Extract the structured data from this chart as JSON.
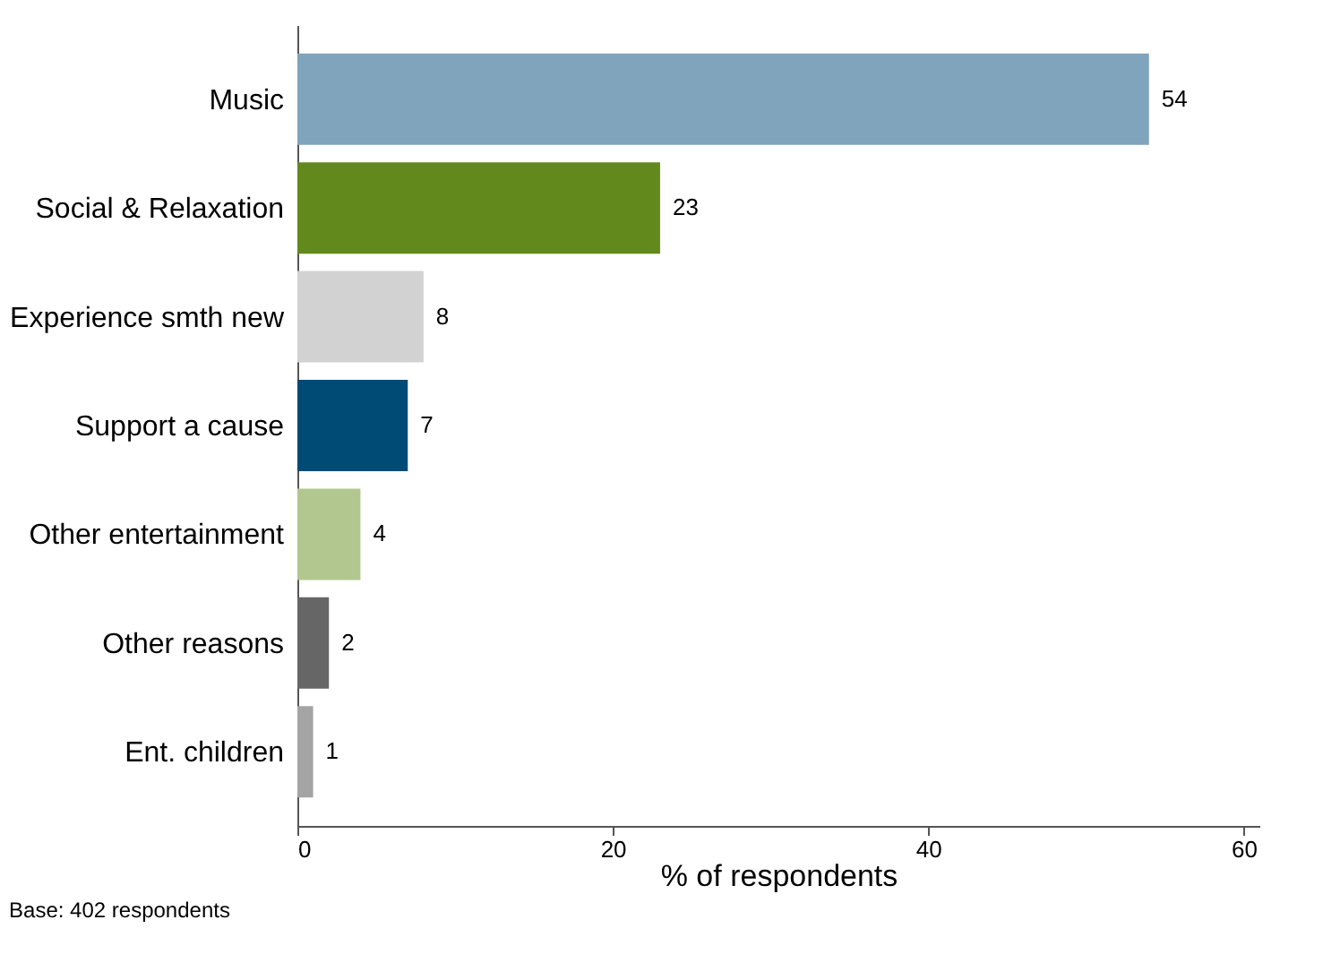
{
  "chart_data": {
    "type": "bar",
    "orientation": "horizontal",
    "categories": [
      "Music",
      "Social & Relaxation",
      "Experience smth new",
      "Support a cause",
      "Other entertainment",
      "Other reasons",
      "Ent. children"
    ],
    "values": [
      54,
      23,
      8,
      7,
      4,
      2,
      1
    ],
    "colors": [
      "#7fa4bb",
      "#62891b",
      "#d2d2d2",
      "#004a76",
      "#b2c78f",
      "#666666",
      "#a4a4a4"
    ],
    "data_labels": true,
    "xlabel": "% of respondents",
    "xlim": [
      0,
      61
    ],
    "xticks": [
      0,
      20,
      40,
      60
    ],
    "grid": false,
    "annotations": [
      "Base: 402 respondents"
    ]
  }
}
